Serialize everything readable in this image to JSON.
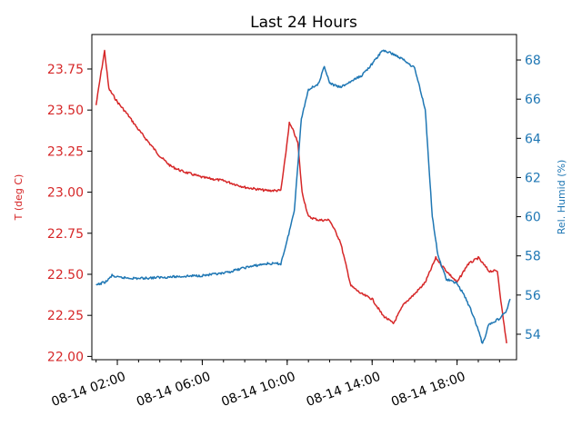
{
  "chart_data": {
    "type": "line",
    "title": "Last 24 Hours",
    "grid": false,
    "x_axis": {
      "range": [
        "08-14 00:48",
        "08-14 20:48"
      ],
      "ticks": [
        "08-14 02:00",
        "08-14 06:00",
        "08-14 10:00",
        "08-14 14:00",
        "08-14 18:00"
      ],
      "minor_tick_interval_minutes": 60,
      "tick_label_rotation_deg": 20
    },
    "y_left": {
      "label": "T (deg C)",
      "color": "#d62728",
      "range": [
        21.98,
        23.96
      ],
      "ticks": [
        "22.00",
        "22.25",
        "22.50",
        "22.75",
        "23.00",
        "23.25",
        "23.50",
        "23.75"
      ]
    },
    "y_right": {
      "label": "Rel. Humid (%)",
      "color": "#1f77b4",
      "range": [
        52.7,
        69.3
      ],
      "ticks": [
        "54",
        "56",
        "58",
        "60",
        "62",
        "64",
        "66",
        "68"
      ]
    },
    "series": [
      {
        "axis": "left",
        "color": "#d62728",
        "points": [
          [
            "08-14 01:00",
            23.53
          ],
          [
            "08-14 01:12",
            23.7
          ],
          [
            "08-14 01:24",
            23.86
          ],
          [
            "08-14 01:36",
            23.63
          ],
          [
            "08-14 02:00",
            23.55
          ],
          [
            "08-14 02:30",
            23.47
          ],
          [
            "08-14 03:00",
            23.38
          ],
          [
            "08-14 03:30",
            23.3
          ],
          [
            "08-14 04:00",
            23.22
          ],
          [
            "08-14 04:30",
            23.16
          ],
          [
            "08-14 05:00",
            23.13
          ],
          [
            "08-14 05:30",
            23.11
          ],
          [
            "08-14 06:00",
            23.09
          ],
          [
            "08-14 07:00",
            23.07
          ],
          [
            "08-14 08:00",
            23.03
          ],
          [
            "08-14 09:00",
            23.01
          ],
          [
            "08-14 09:42",
            23.01
          ],
          [
            "08-14 09:54",
            23.2
          ],
          [
            "08-14 10:06",
            23.42
          ],
          [
            "08-14 10:18",
            23.37
          ],
          [
            "08-14 10:30",
            23.3
          ],
          [
            "08-14 10:42",
            23.0
          ],
          [
            "08-14 11:00",
            22.85
          ],
          [
            "08-14 11:30",
            22.83
          ],
          [
            "08-14 12:00",
            22.83
          ],
          [
            "08-14 12:30",
            22.7
          ],
          [
            "08-14 13:00",
            22.43
          ],
          [
            "08-14 13:30",
            22.38
          ],
          [
            "08-14 14:00",
            22.35
          ],
          [
            "08-14 14:30",
            22.25
          ],
          [
            "08-14 15:00",
            22.2
          ],
          [
            "08-14 15:30",
            22.32
          ],
          [
            "08-14 16:00",
            22.38
          ],
          [
            "08-14 16:30",
            22.45
          ],
          [
            "08-14 17:00",
            22.6
          ],
          [
            "08-14 17:30",
            22.52
          ],
          [
            "08-14 18:00",
            22.45
          ],
          [
            "08-14 18:30",
            22.56
          ],
          [
            "08-14 19:00",
            22.6
          ],
          [
            "08-14 19:30",
            22.52
          ],
          [
            "08-14 19:54",
            22.52
          ],
          [
            "08-14 20:06",
            22.3
          ],
          [
            "08-14 20:20",
            22.08
          ]
        ]
      },
      {
        "axis": "right",
        "color": "#1f77b4",
        "points": [
          [
            "08-14 01:00",
            56.5
          ],
          [
            "08-14 01:30",
            56.7
          ],
          [
            "08-14 01:45",
            57.0
          ],
          [
            "08-14 02:00",
            56.9
          ],
          [
            "08-14 03:00",
            56.85
          ],
          [
            "08-14 04:00",
            56.9
          ],
          [
            "08-14 05:00",
            56.95
          ],
          [
            "08-14 06:00",
            57.0
          ],
          [
            "08-14 07:00",
            57.1
          ],
          [
            "08-14 08:00",
            57.4
          ],
          [
            "08-14 09:00",
            57.6
          ],
          [
            "08-14 09:42",
            57.6
          ],
          [
            "08-14 10:00",
            58.8
          ],
          [
            "08-14 10:20",
            60.3
          ],
          [
            "08-14 10:40",
            65.0
          ],
          [
            "08-14 11:00",
            66.5
          ],
          [
            "08-14 11:30",
            66.8
          ],
          [
            "08-14 11:45",
            67.7
          ],
          [
            "08-14 12:00",
            66.8
          ],
          [
            "08-14 12:30",
            66.6
          ],
          [
            "08-14 13:00",
            66.9
          ],
          [
            "08-14 13:30",
            67.2
          ],
          [
            "08-14 14:00",
            67.8
          ],
          [
            "08-14 14:30",
            68.5
          ],
          [
            "08-14 15:00",
            68.3
          ],
          [
            "08-14 15:30",
            68.0
          ],
          [
            "08-14 16:00",
            67.6
          ],
          [
            "08-14 16:30",
            65.5
          ],
          [
            "08-14 16:50",
            60.0
          ],
          [
            "08-14 17:06",
            58.0
          ],
          [
            "08-14 17:30",
            56.8
          ],
          [
            "08-14 18:00",
            56.6
          ],
          [
            "08-14 18:20",
            56.0
          ],
          [
            "08-14 18:45",
            55.0
          ],
          [
            "08-14 19:00",
            54.2
          ],
          [
            "08-14 19:12",
            53.5
          ],
          [
            "08-14 19:30",
            54.5
          ],
          [
            "08-14 20:00",
            54.8
          ],
          [
            "08-14 20:20",
            55.2
          ],
          [
            "08-14 20:30",
            55.8
          ]
        ]
      }
    ]
  }
}
